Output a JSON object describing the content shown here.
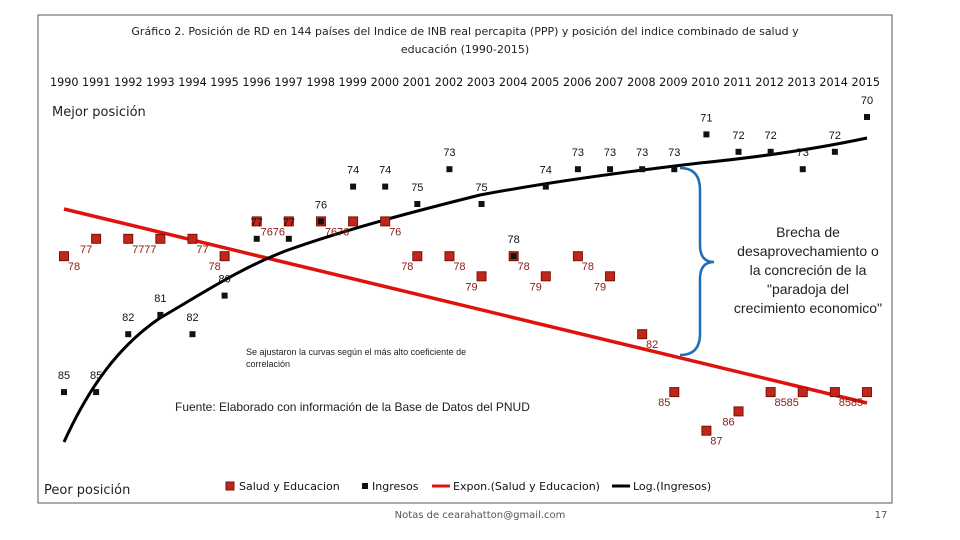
{
  "chart_data": {
    "type": "line",
    "title": "Gráfico 2. Posición de RD en 144 países del Indice de INB real percapita (PPP) y posición del indice combinado de salud y educación (1990-2015)",
    "title_line1": "Gráfico 2. Posición de RD en 144 países del Indice de INB real percapita (PPP) y posición del indice combinado de salud y",
    "title_line2": "educación (1990-2015)",
    "categories": [
      "1990",
      "1991",
      "1992",
      "1993",
      "1994",
      "1995",
      "1996",
      "1997",
      "1998",
      "1999",
      "2000",
      "2001",
      "2002",
      "2003",
      "2004",
      "2005",
      "2006",
      "2007",
      "2008",
      "2009",
      "2010",
      "2011",
      "2012",
      "2013",
      "2014",
      "2015"
    ],
    "years_text": "1990 1991 1992 1993 1994 1995 1996 1997 1998 1999 2000 2001 2002 2003 2004 2005 2006 2007 2008 2009 2010 2011 2012 2013 2014 2015",
    "y_inverted": true,
    "series": [
      {
        "name": "Salud y Educacion",
        "marker": "square",
        "color": "#c0271a",
        "values": [
          78,
          77,
          77,
          77,
          77,
          78,
          76,
          76,
          76,
          76,
          76,
          78,
          78,
          79,
          78,
          79,
          78,
          79,
          82,
          85,
          87,
          86,
          85,
          85,
          85,
          85
        ]
      },
      {
        "name": "Ingresos",
        "marker": "small-square",
        "color": "#111111",
        "values": [
          85,
          85,
          82,
          81,
          82,
          80,
          77,
          77,
          76,
          74,
          74,
          75,
          73,
          75,
          78,
          74,
          73,
          73,
          73,
          73,
          71,
          72,
          72,
          73,
          72,
          70
        ]
      }
    ],
    "trendlines": [
      {
        "name": "Expon.(Salud y Educacion)",
        "color": "#e0120c"
      },
      {
        "name": "Log.(Ingresos)",
        "color": "#000000"
      }
    ],
    "annotations": {
      "best": "Mejor posición",
      "worst": "Peor posición",
      "gap": [
        "Brecha de",
        "desaprovechamiento o",
        "la concreción de la",
        "\"paradoja del",
        "crecimiento economico\""
      ],
      "adjust": [
        "Se ajustaron la curvas según el más alto coeficiente de",
        "correlación"
      ],
      "source": "Fuente: Elaborado con información de la Base de Datos del PNUD"
    },
    "footer": "Notas de cearahatton@gmail.com",
    "page_number": "17"
  }
}
